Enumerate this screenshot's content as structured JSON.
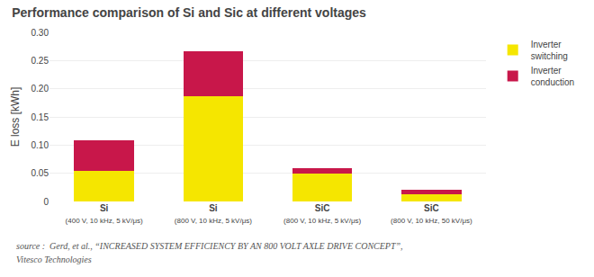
{
  "chart_data": {
    "type": "bar",
    "title": "Performance comparison of Si and Sic at different voltages",
    "categories": [
      "Si\n(400 V, 10 kHz, 5 kV/μs)",
      "Si\n(800 V, 10 kHz, 5 kV/μs)",
      "SiC\n(800 V, 10 kHz, 5 kV/μs)",
      "SiC\n(800 V, 10 kHz, 50 kV/μs)"
    ],
    "series": [
      {
        "name": "Inverter\nswitching",
        "color": "#F5E600",
        "values": [
          0.055,
          0.187,
          0.05,
          0.012
        ]
      },
      {
        "name": "Inverter\nconduction",
        "color": "#C8174A",
        "values": [
          0.054,
          0.08,
          0.009,
          0.009
        ]
      }
    ],
    "stacked": true,
    "ylabel": "E loss [kWh]",
    "ylim": [
      0,
      0.3
    ],
    "yticks": [
      0,
      0.05,
      {
        "value": 0.1,
        "label": "0.10"
      },
      0.15,
      {
        "value": 0.2,
        "label": "0.20"
      },
      0.25,
      {
        "value": 0.3,
        "label": "0.30"
      }
    ],
    "grid": true,
    "legend": "right",
    "annotations": [
      "source :  Gerd, et al., “INCREASED SYSTEM EFFICIENCY BY AN 800 VOLT AXLE DRIVE CONCEPT”,",
      "Vitesco Technologies"
    ]
  }
}
